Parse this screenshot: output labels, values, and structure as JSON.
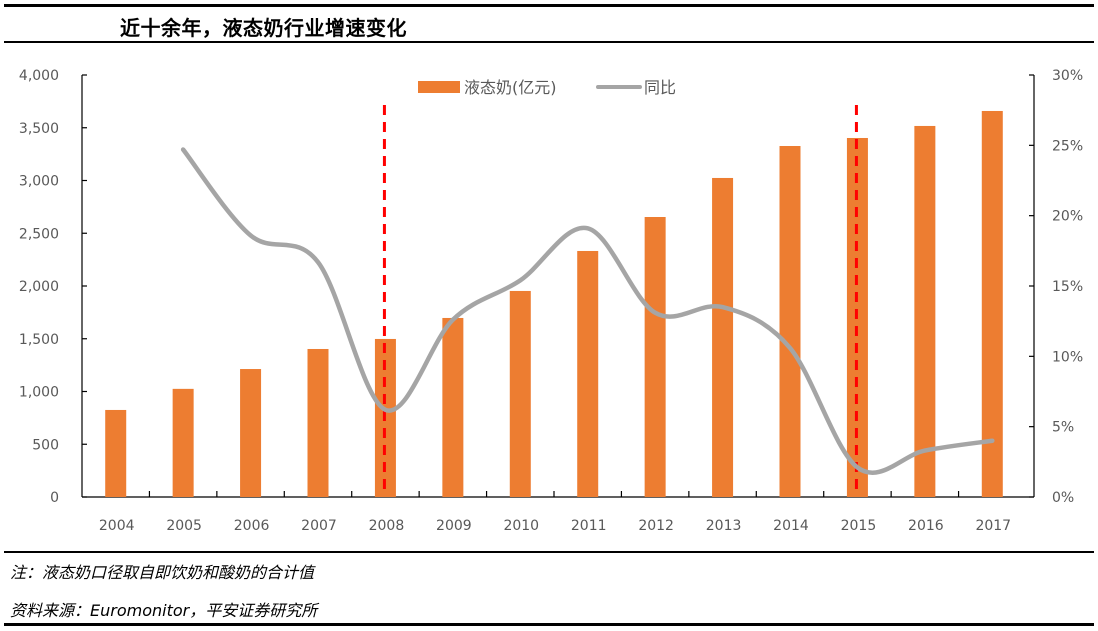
{
  "header": {
    "title": "近十余年，液态奶行业增速变化"
  },
  "chart_data": {
    "type": "bar",
    "title": "近十余年，液态奶行业增速变化",
    "categories": [
      "2004",
      "2005",
      "2006",
      "2007",
      "2008",
      "2009",
      "2010",
      "2011",
      "2012",
      "2013",
      "2014",
      "2015",
      "2016",
      "2017"
    ],
    "series": [
      {
        "name": "液态奶(亿元)",
        "type": "bar",
        "axis": "left",
        "color": "#ED7D31",
        "values": [
          825,
          1025,
          1213,
          1403,
          1498,
          1697,
          1953,
          2332,
          2654,
          3024,
          3327,
          3403,
          3517,
          3659
        ]
      },
      {
        "name": "同比",
        "type": "line",
        "axis": "right",
        "color": "#A5A5A5",
        "smooth": true,
        "values": [
          null,
          24.7,
          18.6,
          16.7,
          6.2,
          12.6,
          15.4,
          19.1,
          13.1,
          13.5,
          10.6,
          2.1,
          3.3,
          4.0
        ]
      }
    ],
    "y_left": {
      "min": 0,
      "max": 4000,
      "ticks": [
        0,
        500,
        1000,
        1500,
        2000,
        2500,
        3000,
        3500,
        4000
      ],
      "tick_labels": [
        "0",
        "500",
        "1,000",
        "1,500",
        "2,000",
        "2,500",
        "3,000",
        "3,500",
        "4,000"
      ]
    },
    "y_right": {
      "min": 0,
      "max": 30,
      "ticks": [
        0,
        5,
        10,
        15,
        20,
        25,
        30
      ],
      "tick_labels": [
        "0%",
        "5%",
        "10%",
        "15%",
        "20%",
        "25%",
        "30%"
      ]
    },
    "annotations": [
      {
        "type": "vertical-dashed-line",
        "x": "2008",
        "color": "#FF0000"
      },
      {
        "type": "vertical-dashed-line",
        "x": "2015",
        "color": "#FF0000"
      }
    ],
    "legend": {
      "position": "top-center",
      "entries": [
        "液态奶(亿元)",
        "同比"
      ]
    },
    "grid": false
  },
  "footer": {
    "note": "注：液态奶口径取自即饮奶和酸奶的合计值",
    "source": "资料来源：Euromonitor，平安证券研究所"
  }
}
